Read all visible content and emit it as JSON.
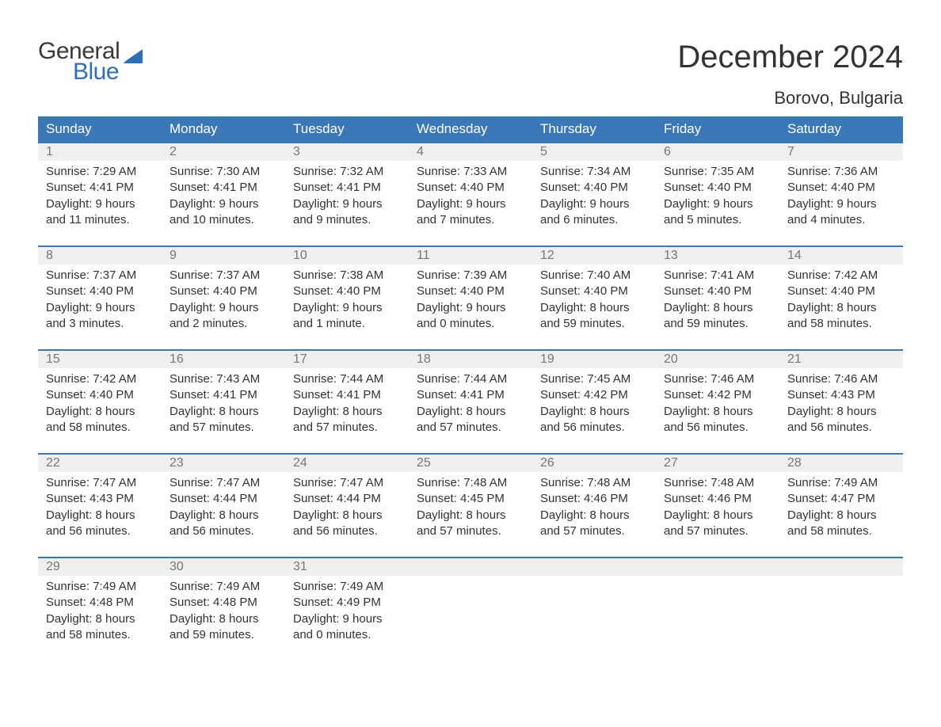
{
  "brand": {
    "word1": "General",
    "word2": "Blue"
  },
  "title": "December 2024",
  "location": "Borovo, Bulgaria",
  "colors": {
    "header_bg": "#3b78b8",
    "header_text": "#ffffff",
    "band_bg": "#efefef",
    "band_border": "#3b78b8",
    "daynum_text": "#777777",
    "body_text": "#333333",
    "brand_blue": "#2d6fb6",
    "brand_dark": "#3a3a3a",
    "page_bg": "#ffffff"
  },
  "layout": {
    "columns": 7,
    "weeks": 5,
    "cell_font_size": 15,
    "header_font_size": 17,
    "title_font_size": 40,
    "location_font_size": 22
  },
  "weekdays": [
    "Sunday",
    "Monday",
    "Tuesday",
    "Wednesday",
    "Thursday",
    "Friday",
    "Saturday"
  ],
  "weeks": [
    [
      {
        "n": "1",
        "sunrise": "Sunrise: 7:29 AM",
        "sunset": "Sunset: 4:41 PM",
        "d1": "Daylight: 9 hours",
        "d2": "and 11 minutes."
      },
      {
        "n": "2",
        "sunrise": "Sunrise: 7:30 AM",
        "sunset": "Sunset: 4:41 PM",
        "d1": "Daylight: 9 hours",
        "d2": "and 10 minutes."
      },
      {
        "n": "3",
        "sunrise": "Sunrise: 7:32 AM",
        "sunset": "Sunset: 4:41 PM",
        "d1": "Daylight: 9 hours",
        "d2": "and 9 minutes."
      },
      {
        "n": "4",
        "sunrise": "Sunrise: 7:33 AM",
        "sunset": "Sunset: 4:40 PM",
        "d1": "Daylight: 9 hours",
        "d2": "and 7 minutes."
      },
      {
        "n": "5",
        "sunrise": "Sunrise: 7:34 AM",
        "sunset": "Sunset: 4:40 PM",
        "d1": "Daylight: 9 hours",
        "d2": "and 6 minutes."
      },
      {
        "n": "6",
        "sunrise": "Sunrise: 7:35 AM",
        "sunset": "Sunset: 4:40 PM",
        "d1": "Daylight: 9 hours",
        "d2": "and 5 minutes."
      },
      {
        "n": "7",
        "sunrise": "Sunrise: 7:36 AM",
        "sunset": "Sunset: 4:40 PM",
        "d1": "Daylight: 9 hours",
        "d2": "and 4 minutes."
      }
    ],
    [
      {
        "n": "8",
        "sunrise": "Sunrise: 7:37 AM",
        "sunset": "Sunset: 4:40 PM",
        "d1": "Daylight: 9 hours",
        "d2": "and 3 minutes."
      },
      {
        "n": "9",
        "sunrise": "Sunrise: 7:37 AM",
        "sunset": "Sunset: 4:40 PM",
        "d1": "Daylight: 9 hours",
        "d2": "and 2 minutes."
      },
      {
        "n": "10",
        "sunrise": "Sunrise: 7:38 AM",
        "sunset": "Sunset: 4:40 PM",
        "d1": "Daylight: 9 hours",
        "d2": "and 1 minute."
      },
      {
        "n": "11",
        "sunrise": "Sunrise: 7:39 AM",
        "sunset": "Sunset: 4:40 PM",
        "d1": "Daylight: 9 hours",
        "d2": "and 0 minutes."
      },
      {
        "n": "12",
        "sunrise": "Sunrise: 7:40 AM",
        "sunset": "Sunset: 4:40 PM",
        "d1": "Daylight: 8 hours",
        "d2": "and 59 minutes."
      },
      {
        "n": "13",
        "sunrise": "Sunrise: 7:41 AM",
        "sunset": "Sunset: 4:40 PM",
        "d1": "Daylight: 8 hours",
        "d2": "and 59 minutes."
      },
      {
        "n": "14",
        "sunrise": "Sunrise: 7:42 AM",
        "sunset": "Sunset: 4:40 PM",
        "d1": "Daylight: 8 hours",
        "d2": "and 58 minutes."
      }
    ],
    [
      {
        "n": "15",
        "sunrise": "Sunrise: 7:42 AM",
        "sunset": "Sunset: 4:40 PM",
        "d1": "Daylight: 8 hours",
        "d2": "and 58 minutes."
      },
      {
        "n": "16",
        "sunrise": "Sunrise: 7:43 AM",
        "sunset": "Sunset: 4:41 PM",
        "d1": "Daylight: 8 hours",
        "d2": "and 57 minutes."
      },
      {
        "n": "17",
        "sunrise": "Sunrise: 7:44 AM",
        "sunset": "Sunset: 4:41 PM",
        "d1": "Daylight: 8 hours",
        "d2": "and 57 minutes."
      },
      {
        "n": "18",
        "sunrise": "Sunrise: 7:44 AM",
        "sunset": "Sunset: 4:41 PM",
        "d1": "Daylight: 8 hours",
        "d2": "and 57 minutes."
      },
      {
        "n": "19",
        "sunrise": "Sunrise: 7:45 AM",
        "sunset": "Sunset: 4:42 PM",
        "d1": "Daylight: 8 hours",
        "d2": "and 56 minutes."
      },
      {
        "n": "20",
        "sunrise": "Sunrise: 7:46 AM",
        "sunset": "Sunset: 4:42 PM",
        "d1": "Daylight: 8 hours",
        "d2": "and 56 minutes."
      },
      {
        "n": "21",
        "sunrise": "Sunrise: 7:46 AM",
        "sunset": "Sunset: 4:43 PM",
        "d1": "Daylight: 8 hours",
        "d2": "and 56 minutes."
      }
    ],
    [
      {
        "n": "22",
        "sunrise": "Sunrise: 7:47 AM",
        "sunset": "Sunset: 4:43 PM",
        "d1": "Daylight: 8 hours",
        "d2": "and 56 minutes."
      },
      {
        "n": "23",
        "sunrise": "Sunrise: 7:47 AM",
        "sunset": "Sunset: 4:44 PM",
        "d1": "Daylight: 8 hours",
        "d2": "and 56 minutes."
      },
      {
        "n": "24",
        "sunrise": "Sunrise: 7:47 AM",
        "sunset": "Sunset: 4:44 PM",
        "d1": "Daylight: 8 hours",
        "d2": "and 56 minutes."
      },
      {
        "n": "25",
        "sunrise": "Sunrise: 7:48 AM",
        "sunset": "Sunset: 4:45 PM",
        "d1": "Daylight: 8 hours",
        "d2": "and 57 minutes."
      },
      {
        "n": "26",
        "sunrise": "Sunrise: 7:48 AM",
        "sunset": "Sunset: 4:46 PM",
        "d1": "Daylight: 8 hours",
        "d2": "and 57 minutes."
      },
      {
        "n": "27",
        "sunrise": "Sunrise: 7:48 AM",
        "sunset": "Sunset: 4:46 PM",
        "d1": "Daylight: 8 hours",
        "d2": "and 57 minutes."
      },
      {
        "n": "28",
        "sunrise": "Sunrise: 7:49 AM",
        "sunset": "Sunset: 4:47 PM",
        "d1": "Daylight: 8 hours",
        "d2": "and 58 minutes."
      }
    ],
    [
      {
        "n": "29",
        "sunrise": "Sunrise: 7:49 AM",
        "sunset": "Sunset: 4:48 PM",
        "d1": "Daylight: 8 hours",
        "d2": "and 58 minutes."
      },
      {
        "n": "30",
        "sunrise": "Sunrise: 7:49 AM",
        "sunset": "Sunset: 4:48 PM",
        "d1": "Daylight: 8 hours",
        "d2": "and 59 minutes."
      },
      {
        "n": "31",
        "sunrise": "Sunrise: 7:49 AM",
        "sunset": "Sunset: 4:49 PM",
        "d1": "Daylight: 9 hours",
        "d2": "and 0 minutes."
      },
      null,
      null,
      null,
      null
    ]
  ]
}
